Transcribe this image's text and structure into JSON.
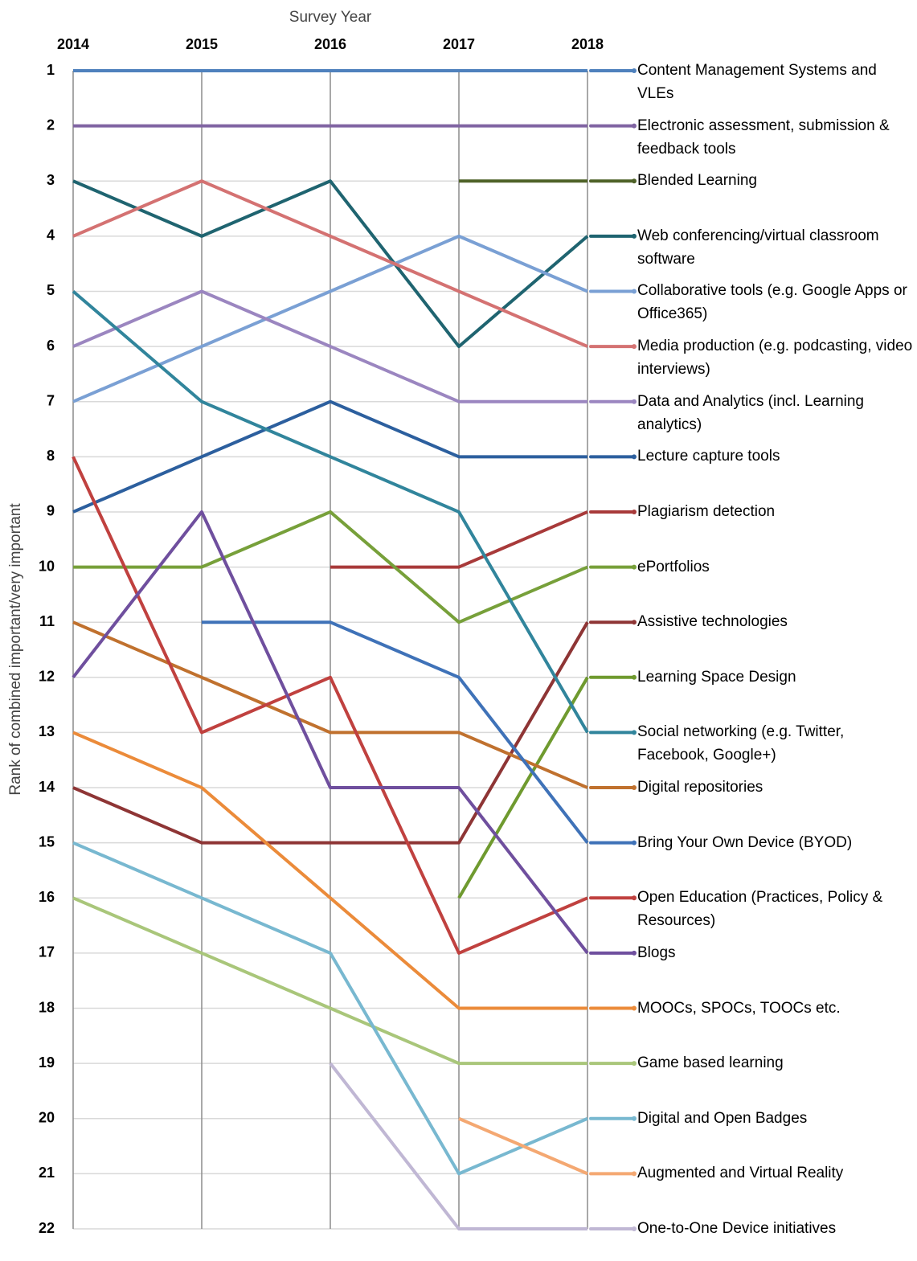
{
  "chart_data": {
    "type": "line",
    "x_axis_label": "Survey Year",
    "y_axis_label": "Rank of combined important/very important",
    "categories": [
      "2014",
      "2015",
      "2016",
      "2017",
      "2018"
    ],
    "ylim": [
      1,
      22
    ],
    "y_inverted": true,
    "yticks": [
      1,
      2,
      3,
      4,
      5,
      6,
      7,
      8,
      9,
      10,
      11,
      12,
      13,
      14,
      15,
      16,
      17,
      18,
      19,
      20,
      21,
      22
    ],
    "grid": true,
    "series": [
      {
        "name": "Content Management Systems and VLEs",
        "color": "#4f81bd",
        "values": [
          1,
          1,
          1,
          1,
          1
        ]
      },
      {
        "name": "Electronic assessment, submission & feedback tools",
        "color": "#8064a2",
        "values": [
          2,
          2,
          2,
          2,
          2
        ]
      },
      {
        "name": "Blended Learning",
        "color": "#4f6228",
        "values": [
          null,
          null,
          null,
          3,
          3
        ]
      },
      {
        "name": "Web conferencing/virtual classroom software",
        "color": "#1f6470",
        "values": [
          3,
          4,
          3,
          6,
          4
        ]
      },
      {
        "name": "Collaborative tools (e.g. Google Apps or Office365)",
        "color": "#7aa0d4",
        "values": [
          7,
          6,
          5,
          4,
          5
        ]
      },
      {
        "name": "Media production (e.g. podcasting, video interviews)",
        "color": "#d47272",
        "values": [
          4,
          3,
          4,
          5,
          6
        ]
      },
      {
        "name": "Data and Analytics (incl. Learning analytics)",
        "color": "#9b86c0",
        "values": [
          6,
          5,
          6,
          7,
          7
        ]
      },
      {
        "name": "Lecture capture tools",
        "color": "#2c5f9e",
        "values": [
          9,
          8,
          7,
          8,
          8
        ]
      },
      {
        "name": "Plagiarism detection",
        "color": "#a83a3a",
        "values": [
          null,
          null,
          10,
          10,
          9
        ]
      },
      {
        "name": "ePortfolios",
        "color": "#77a03a",
        "values": [
          10,
          10,
          9,
          11,
          10
        ]
      },
      {
        "name": "Assistive technologies",
        "color": "#8e3535",
        "values": [
          14,
          15,
          15,
          15,
          11
        ]
      },
      {
        "name": "Learning Space Design",
        "color": "#6f9a2f",
        "values": [
          null,
          null,
          null,
          16,
          12
        ]
      },
      {
        "name": "Social networking (e.g. Twitter, Facebook, Google+)",
        "color": "#31859c",
        "values": [
          5,
          7,
          8,
          9,
          13
        ]
      },
      {
        "name": "Digital repositories",
        "color": "#c0712e",
        "values": [
          11,
          12,
          13,
          13,
          14
        ]
      },
      {
        "name": "Bring Your Own Device (BYOD)",
        "color": "#3f72b8",
        "values": [
          null,
          11,
          11,
          12,
          15
        ]
      },
      {
        "name": "Open Education (Practices, Policy & Resources)",
        "color": "#c0413f",
        "values": [
          8,
          13,
          12,
          17,
          16
        ]
      },
      {
        "name": "Blogs",
        "color": "#6f4f9e",
        "values": [
          12,
          9,
          14,
          14,
          17
        ]
      },
      {
        "name": "MOOCs, SPOCs, TOOCs etc.",
        "color": "#eb8b3a",
        "values": [
          13,
          14,
          16,
          18,
          18
        ]
      },
      {
        "name": "Game based learning",
        "color": "#a9c67a",
        "values": [
          16,
          17,
          18,
          19,
          19
        ]
      },
      {
        "name": "Digital and Open Badges",
        "color": "#78b8d0",
        "values": [
          15,
          16,
          17,
          21,
          20
        ]
      },
      {
        "name": "Augmented and Virtual Reality",
        "color": "#f4a872",
        "values": [
          null,
          null,
          null,
          20,
          21
        ]
      },
      {
        "name": "One-to-One Device initiatives",
        "color": "#c0b7d4",
        "values": [
          null,
          null,
          19,
          22,
          22
        ]
      }
    ]
  }
}
